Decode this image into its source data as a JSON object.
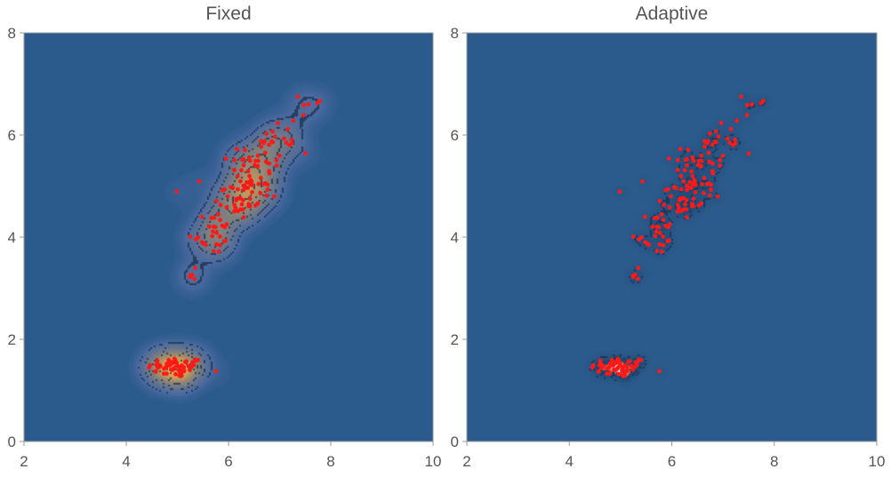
{
  "colors": {
    "background": "#2b5a8c",
    "contour_line": "#1a2f4a",
    "point": "#ff1a1a",
    "density_low": "#4a6aa0",
    "density_mid": "#8a8478",
    "density_high": "#d8a050",
    "density_peak": "#f0b050"
  },
  "chart_data": [
    {
      "type": "scatter",
      "title": "Fixed",
      "xlim": [
        2,
        10
      ],
      "ylim": [
        0,
        8
      ],
      "xticks": [
        2,
        4,
        6,
        8,
        10
      ],
      "yticks": [
        0,
        2,
        4,
        6,
        8
      ],
      "x_tick_labels": [
        "2",
        "4",
        "6",
        "8",
        "10"
      ],
      "y_tick_labels": [
        "0",
        "2",
        "4",
        "6",
        "8"
      ],
      "overlay": "smooth kernel density contours (fixed bandwidth)",
      "clusters": [
        {
          "center": [
            4.98,
            1.45
          ],
          "spread": [
            0.28,
            0.1
          ],
          "n": 55
        },
        {
          "center": [
            5.3,
            3.3
          ],
          "spread": [
            0.08,
            0.12
          ],
          "n": 5
        },
        {
          "center": [
            5.65,
            4.1
          ],
          "spread": [
            0.22,
            0.22
          ],
          "n": 25
        },
        {
          "center": [
            6.2,
            4.75
          ],
          "spread": [
            0.3,
            0.3
          ],
          "n": 45
        },
        {
          "center": [
            6.55,
            5.45
          ],
          "spread": [
            0.28,
            0.3
          ],
          "n": 40
        },
        {
          "center": [
            7.15,
            5.95
          ],
          "spread": [
            0.25,
            0.22
          ],
          "n": 15
        },
        {
          "center": [
            7.65,
            6.6
          ],
          "spread": [
            0.12,
            0.15
          ],
          "n": 6
        }
      ]
    },
    {
      "type": "scatter",
      "title": "Adaptive",
      "xlim": [
        2,
        10
      ],
      "ylim": [
        0,
        8
      ],
      "xticks": [
        2,
        4,
        6,
        8,
        10
      ],
      "yticks": [
        0,
        2,
        4,
        6,
        8
      ],
      "x_tick_labels": [
        "2",
        "4",
        "6",
        "8",
        "10"
      ],
      "y_tick_labels": [
        "0",
        "2",
        "4",
        "6",
        "8"
      ],
      "overlay": "smooth kernel density contours (adaptive bandwidth)",
      "clusters": [
        {
          "center": [
            4.98,
            1.45
          ],
          "spread": [
            0.28,
            0.1
          ],
          "n": 55
        },
        {
          "center": [
            5.3,
            3.3
          ],
          "spread": [
            0.08,
            0.12
          ],
          "n": 5
        },
        {
          "center": [
            5.65,
            4.1
          ],
          "spread": [
            0.22,
            0.22
          ],
          "n": 25
        },
        {
          "center": [
            6.2,
            4.75
          ],
          "spread": [
            0.3,
            0.3
          ],
          "n": 45
        },
        {
          "center": [
            6.55,
            5.45
          ],
          "spread": [
            0.28,
            0.3
          ],
          "n": 40
        },
        {
          "center": [
            7.15,
            5.95
          ],
          "spread": [
            0.25,
            0.22
          ],
          "n": 15
        },
        {
          "center": [
            7.65,
            6.6
          ],
          "spread": [
            0.12,
            0.15
          ],
          "n": 6
        }
      ]
    }
  ]
}
